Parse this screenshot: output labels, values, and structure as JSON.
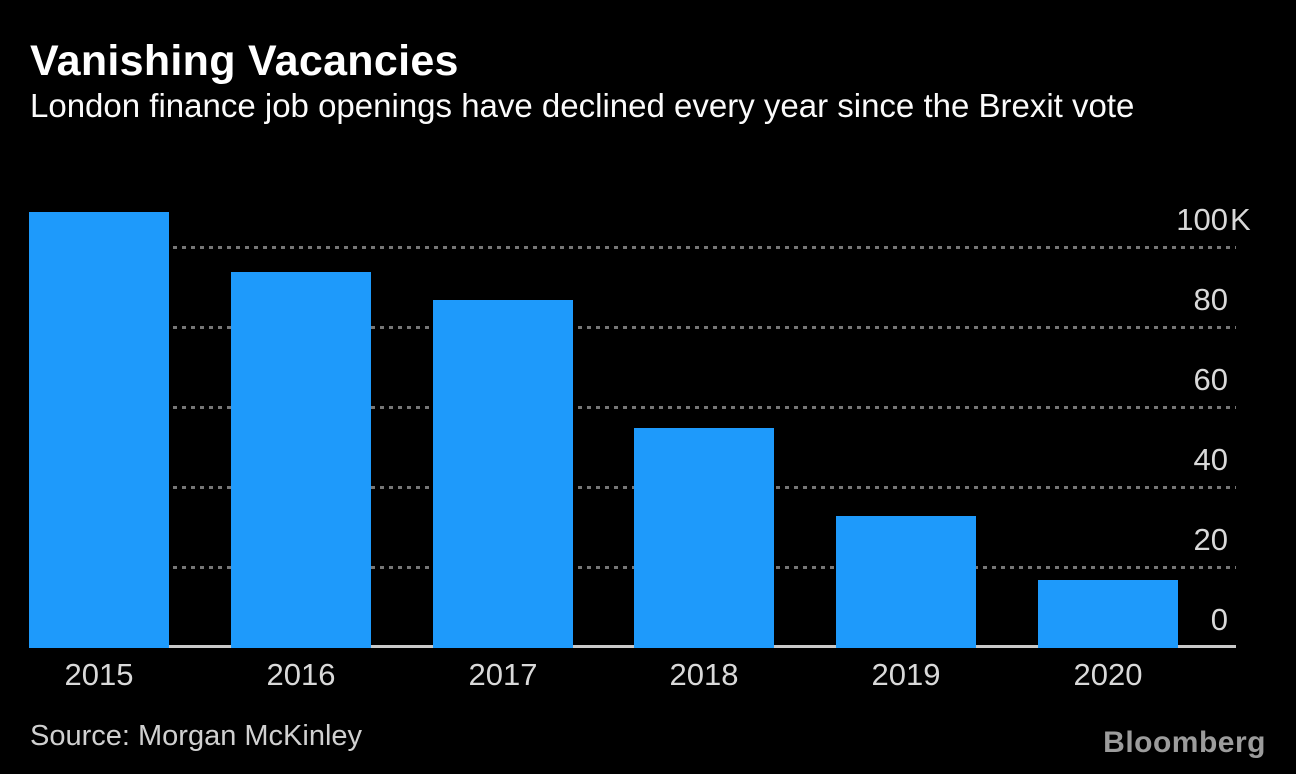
{
  "header": {
    "title": "Vanishing Vacancies",
    "subtitle": "London finance job openings have declined every year since the Brexit vote"
  },
  "chart_data": {
    "type": "bar",
    "title": "Vanishing Vacancies",
    "subtitle": "London finance job openings have declined every year since the Brexit vote",
    "series_name": "London finance job openings",
    "categories": [
      "2015",
      "2016",
      "2017",
      "2018",
      "2019",
      "2020"
    ],
    "values": [
      109000,
      94000,
      87000,
      55000,
      33000,
      17000
    ],
    "ylim": [
      0,
      110000
    ],
    "yticks": [
      {
        "value": 100000,
        "num": "100",
        "suffix": "K"
      },
      {
        "value": 80000,
        "num": "80",
        "suffix": ""
      },
      {
        "value": 60000,
        "num": "60",
        "suffix": ""
      },
      {
        "value": 40000,
        "num": "40",
        "suffix": ""
      },
      {
        "value": 20000,
        "num": "20",
        "suffix": ""
      },
      {
        "value": 0,
        "num": "0",
        "suffix": ""
      }
    ],
    "axis_side": "right",
    "grid": "horizontal-dashed",
    "legend": "none",
    "colors": {
      "background": "#000000",
      "bar": "#1e9afb",
      "gridline": "#767676",
      "axis_line": "#c9c9c9",
      "tick_text": "#d9d9d9",
      "title_text": "#ffffff",
      "source_text": "#d0d0d0",
      "brand_text": "#9c9c9c"
    }
  },
  "footer": {
    "source": "Source: Morgan McKinley",
    "brand": "Bloomberg"
  }
}
